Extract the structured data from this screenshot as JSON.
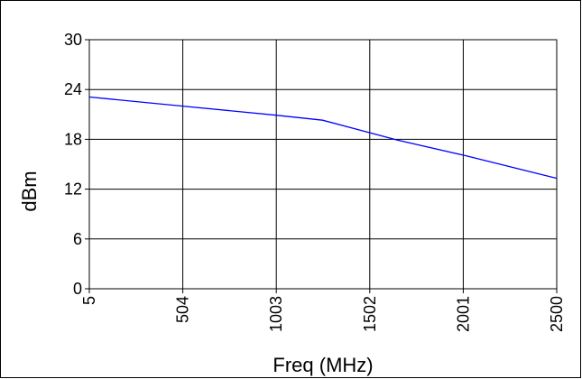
{
  "chart_data": {
    "type": "line",
    "xlabel": "Freq (MHz)",
    "ylabel": "dBm",
    "xlim": [
      5,
      2500
    ],
    "ylim": [
      0,
      30
    ],
    "x_ticks": [
      5,
      504,
      1003,
      1502,
      2001,
      2500
    ],
    "y_ticks": [
      0,
      6,
      12,
      18,
      24,
      30
    ],
    "grid": true,
    "series": [
      {
        "color": "#0000ff",
        "x": [
          5,
          504,
          1003,
          1250,
          1650,
          2001,
          2500
        ],
        "y": [
          23.1,
          22.0,
          20.9,
          20.3,
          17.9,
          16.1,
          13.3
        ]
      }
    ]
  }
}
